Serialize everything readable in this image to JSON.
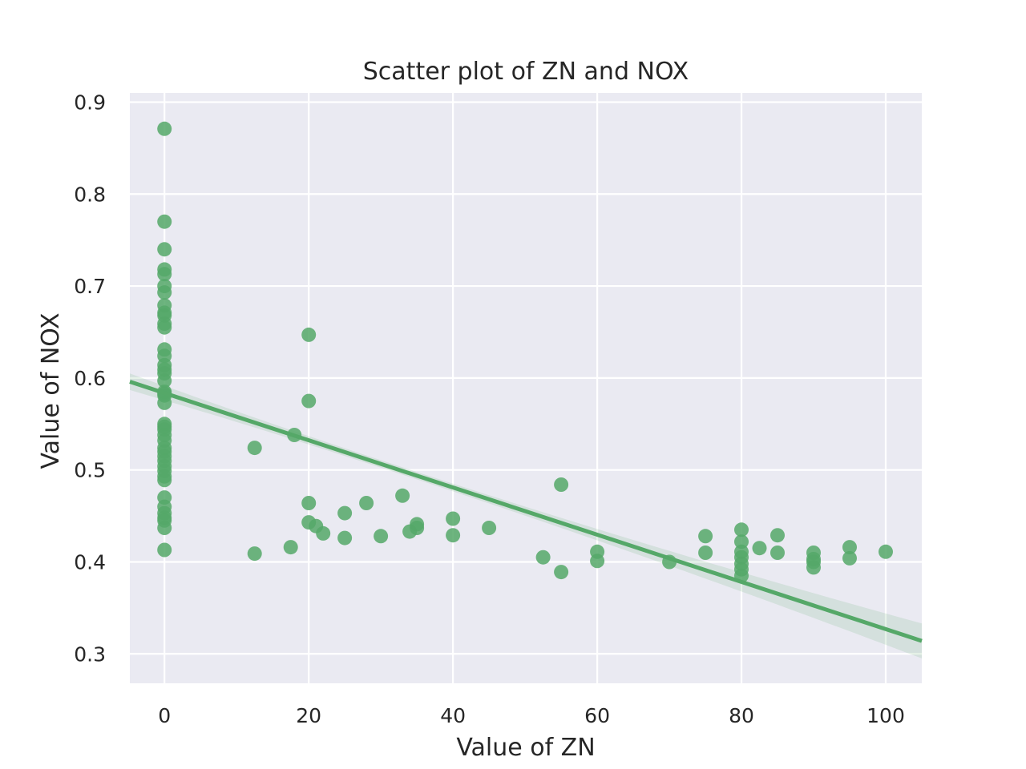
{
  "chart_data": {
    "type": "scatter",
    "title": "Scatter plot of ZN and NOX",
    "xlabel": "Value of ZN",
    "ylabel": "Value of NOX",
    "xlim": [
      -4.8,
      105
    ],
    "ylim": [
      0.268,
      0.91
    ],
    "xticks": [
      0,
      20,
      40,
      60,
      80,
      100
    ],
    "yticks": [
      0.3,
      0.4,
      0.5,
      0.6,
      0.7,
      0.8,
      0.9
    ],
    "xtick_labels": [
      "0",
      "20",
      "40",
      "60",
      "80",
      "100"
    ],
    "ytick_labels": [
      "0.3",
      "0.4",
      "0.5",
      "0.6",
      "0.7",
      "0.8",
      "0.9"
    ],
    "grid": true,
    "colors": {
      "background": "#eaeaf2",
      "grid": "#ffffff",
      "point": "#55a868",
      "band": "#55a868"
    },
    "points": [
      [
        0,
        0.871
      ],
      [
        0,
        0.77
      ],
      [
        0,
        0.74
      ],
      [
        0,
        0.718
      ],
      [
        0,
        0.713
      ],
      [
        0,
        0.7
      ],
      [
        0,
        0.693
      ],
      [
        0,
        0.679
      ],
      [
        0,
        0.671
      ],
      [
        0,
        0.668
      ],
      [
        0,
        0.659
      ],
      [
        0,
        0.655
      ],
      [
        0,
        0.631
      ],
      [
        0,
        0.624
      ],
      [
        0,
        0.614
      ],
      [
        0,
        0.609
      ],
      [
        0,
        0.605
      ],
      [
        0,
        0.597
      ],
      [
        0,
        0.585
      ],
      [
        0,
        0.583
      ],
      [
        0,
        0.581
      ],
      [
        0,
        0.573
      ],
      [
        0,
        0.55
      ],
      [
        0,
        0.547
      ],
      [
        0,
        0.544
      ],
      [
        0,
        0.538
      ],
      [
        0,
        0.532
      ],
      [
        0,
        0.524
      ],
      [
        0,
        0.52
      ],
      [
        0,
        0.515
      ],
      [
        0,
        0.51
      ],
      [
        0,
        0.504
      ],
      [
        0,
        0.499
      ],
      [
        0,
        0.493
      ],
      [
        0,
        0.489
      ],
      [
        0,
        0.47
      ],
      [
        0,
        0.46
      ],
      [
        0,
        0.453
      ],
      [
        0,
        0.448
      ],
      [
        0,
        0.445
      ],
      [
        0,
        0.437
      ],
      [
        0,
        0.413
      ],
      [
        12.5,
        0.524
      ],
      [
        12.5,
        0.409
      ],
      [
        17.5,
        0.416
      ],
      [
        18,
        0.538
      ],
      [
        20,
        0.647
      ],
      [
        20,
        0.575
      ],
      [
        20,
        0.464
      ],
      [
        20,
        0.443
      ],
      [
        21,
        0.439
      ],
      [
        22,
        0.431
      ],
      [
        25,
        0.453
      ],
      [
        25,
        0.426
      ],
      [
        28,
        0.464
      ],
      [
        30,
        0.428
      ],
      [
        33,
        0.472
      ],
      [
        34,
        0.433
      ],
      [
        35,
        0.441
      ],
      [
        35,
        0.437
      ],
      [
        40,
        0.447
      ],
      [
        40,
        0.429
      ],
      [
        45,
        0.437
      ],
      [
        52.5,
        0.405
      ],
      [
        55,
        0.484
      ],
      [
        55,
        0.389
      ],
      [
        60,
        0.411
      ],
      [
        60,
        0.401
      ],
      [
        70,
        0.4
      ],
      [
        75,
        0.428
      ],
      [
        75,
        0.41
      ],
      [
        80,
        0.435
      ],
      [
        80,
        0.422
      ],
      [
        80,
        0.411
      ],
      [
        80,
        0.405
      ],
      [
        80,
        0.398
      ],
      [
        80,
        0.392
      ],
      [
        80,
        0.385
      ],
      [
        82.5,
        0.415
      ],
      [
        85,
        0.429
      ],
      [
        85,
        0.41
      ],
      [
        90,
        0.41
      ],
      [
        90,
        0.403
      ],
      [
        90,
        0.4
      ],
      [
        90,
        0.394
      ],
      [
        95,
        0.416
      ],
      [
        95,
        0.404
      ],
      [
        100,
        0.411
      ]
    ],
    "regression": {
      "slope": -0.002567,
      "intercept": 0.5836,
      "ci_halfwidth_at_xmin": 0.009,
      "ci_halfwidth_at_xmax": 0.019,
      "ci_halfwidth_at_center": 0.004,
      "x_center": 32
    }
  }
}
